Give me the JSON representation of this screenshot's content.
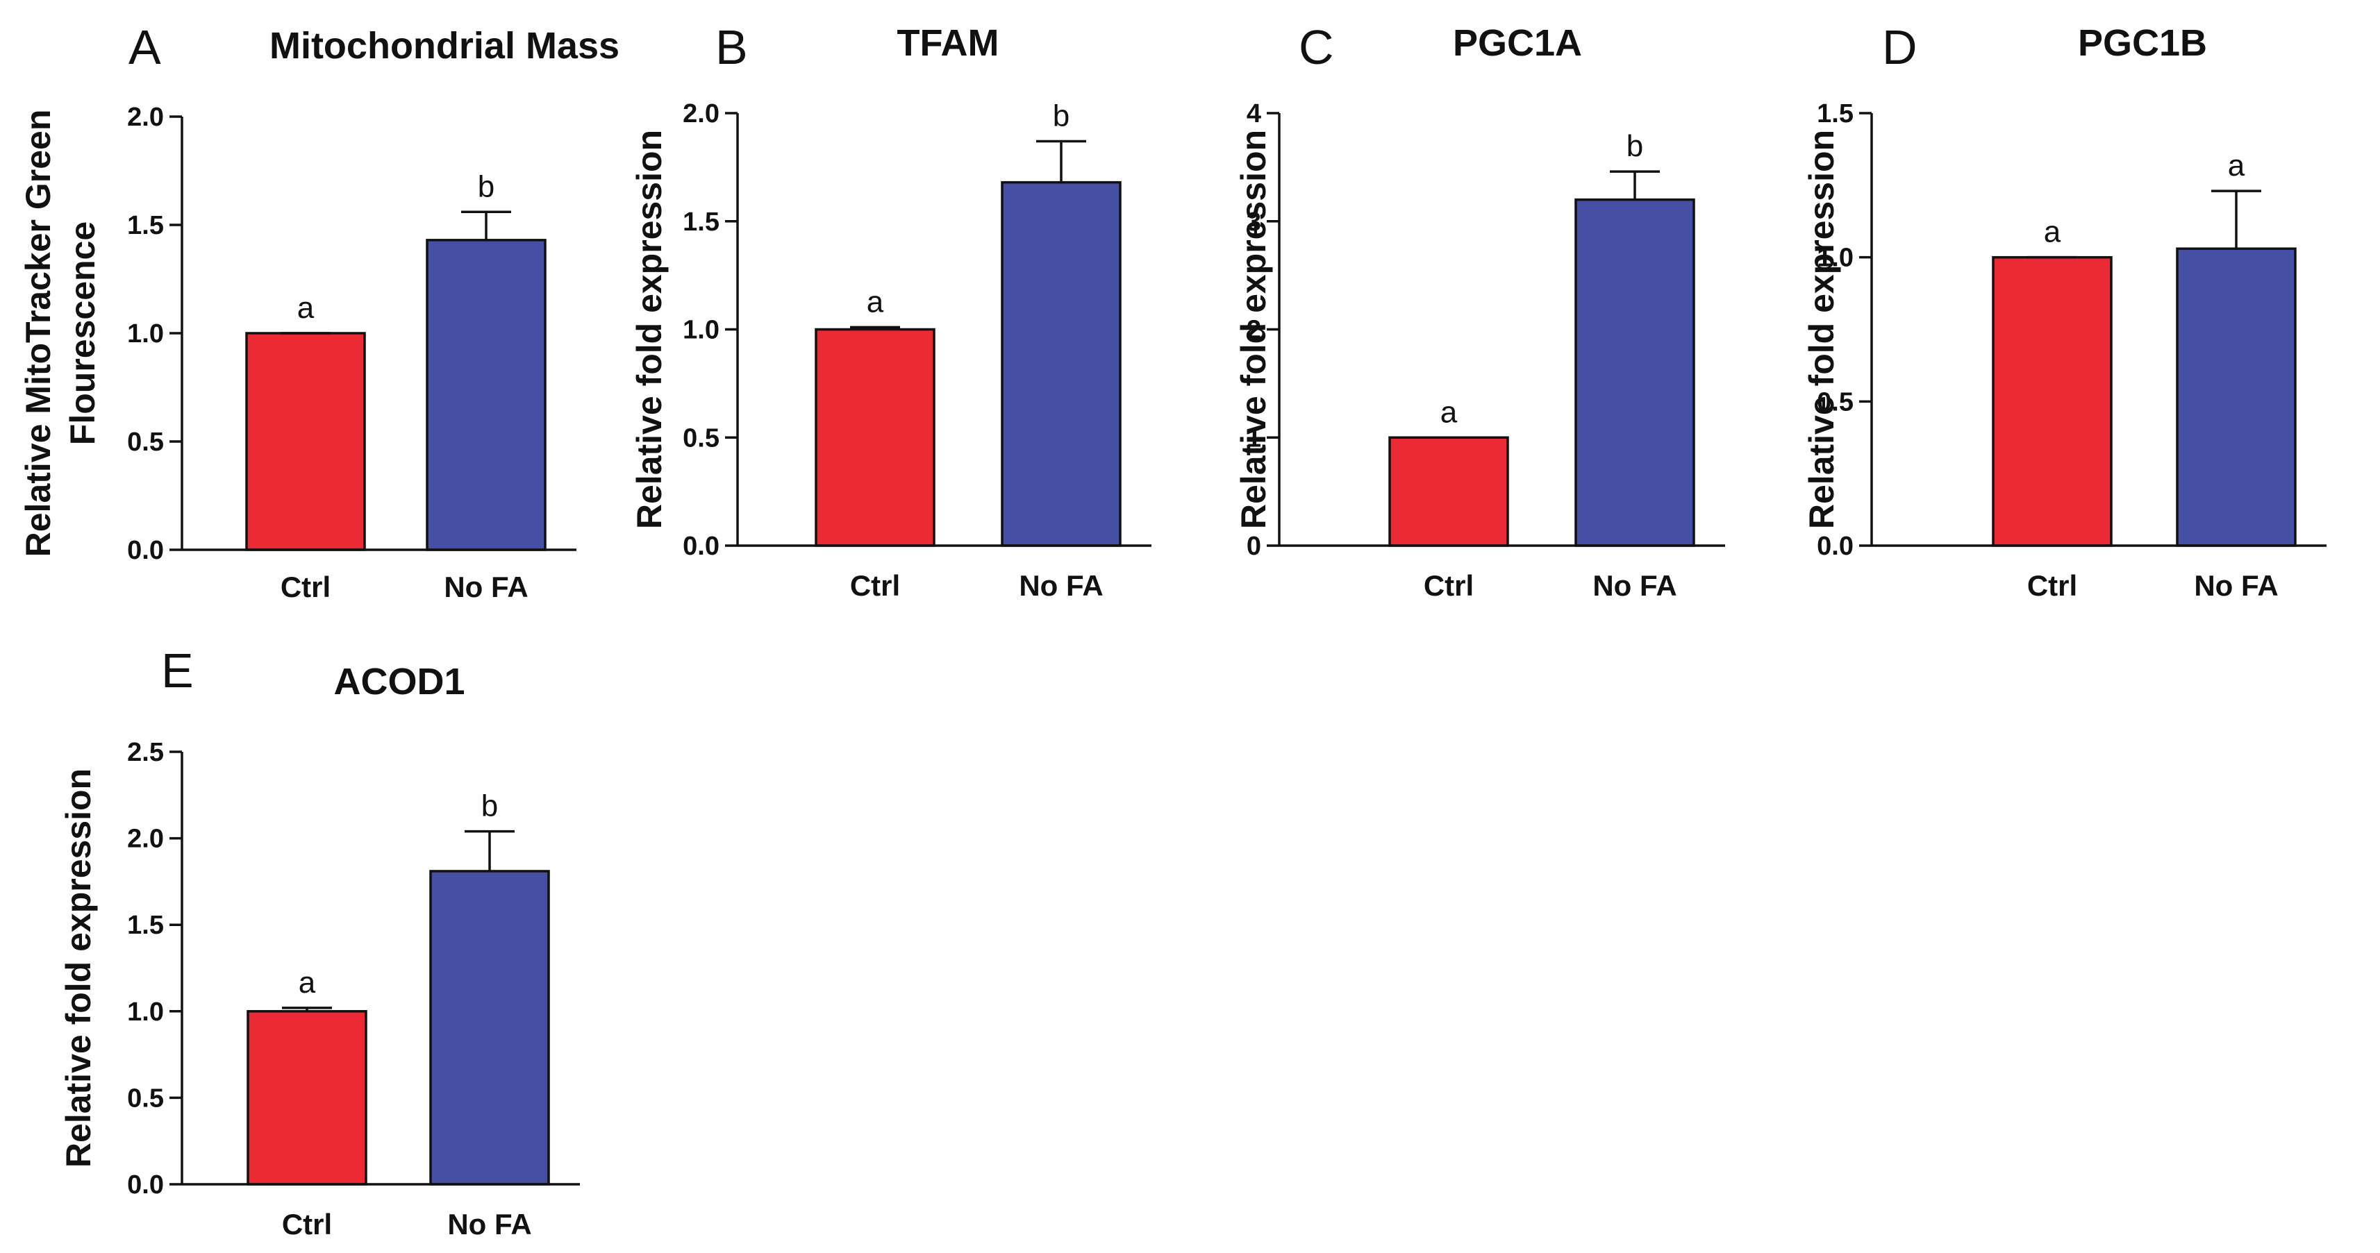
{
  "figure_letters": [
    "A",
    "B",
    "C",
    "D",
    "E"
  ],
  "colors": {
    "ctrl": "#EC2A35",
    "nofa": "#454FA4",
    "axis": "#111111"
  },
  "chart_data": [
    {
      "panel": "A",
      "type": "bar",
      "title": "Mitochondrial Mass",
      "ylabel_lines": [
        "Relative MitoTracker Green",
        "Flourescence"
      ],
      "categories": [
        "Ctrl",
        "No FA"
      ],
      "values": [
        1.0,
        1.43
      ],
      "errors": [
        0.0,
        0.13
      ],
      "significance": [
        "a",
        "b"
      ],
      "ylim": [
        0,
        2.0
      ],
      "yticks": [
        0,
        0.5,
        1.0,
        1.5,
        2.0
      ],
      "ytick_labels": [
        "0.0",
        "0.5",
        "1.0",
        "1.5",
        "2.0"
      ]
    },
    {
      "panel": "B",
      "type": "bar",
      "title": "TFAM",
      "ylabel_lines": [
        "Relative fold expression"
      ],
      "categories": [
        "Ctrl",
        "No FA"
      ],
      "values": [
        1.0,
        1.68
      ],
      "errors": [
        0.01,
        0.19
      ],
      "significance": [
        "a",
        "b"
      ],
      "ylim": [
        0,
        2.0
      ],
      "yticks": [
        0,
        0.5,
        1.0,
        1.5,
        2.0
      ],
      "ytick_labels": [
        "0.0",
        "0.5",
        "1.0",
        "1.5",
        "2.0"
      ]
    },
    {
      "panel": "C",
      "type": "bar",
      "title": "PGC1A",
      "ylabel_lines": [
        "Relative fold expression"
      ],
      "categories": [
        "Ctrl",
        "No FA"
      ],
      "values": [
        1.0,
        3.2
      ],
      "errors": [
        0.0,
        0.26
      ],
      "significance": [
        "a",
        "b"
      ],
      "ylim": [
        0,
        4
      ],
      "yticks": [
        0,
        1,
        2,
        3,
        4
      ],
      "ytick_labels": [
        "0",
        "1",
        "2",
        "3",
        "4"
      ]
    },
    {
      "panel": "D",
      "type": "bar",
      "title": "PGC1B",
      "ylabel_lines": [
        "Relative fold expression"
      ],
      "categories": [
        "Ctrl",
        "No FA"
      ],
      "values": [
        1.0,
        1.03
      ],
      "errors": [
        0.0,
        0.2
      ],
      "significance": [
        "a",
        "a"
      ],
      "ylim": [
        0,
        1.5
      ],
      "yticks": [
        0,
        0.5,
        1.0,
        1.5
      ],
      "ytick_labels": [
        "0.0",
        "0.5",
        "1.0",
        "1.5"
      ]
    },
    {
      "panel": "E",
      "type": "bar",
      "title": "ACOD1",
      "ylabel_lines": [
        "Relative fold expression"
      ],
      "categories": [
        "Ctrl",
        "No FA"
      ],
      "values": [
        1.0,
        1.81
      ],
      "errors": [
        0.02,
        0.23
      ],
      "significance": [
        "a",
        "b"
      ],
      "ylim": [
        0,
        2.5
      ],
      "yticks": [
        0,
        0.5,
        1.0,
        1.5,
        2.0,
        2.5
      ],
      "ytick_labels": [
        "0.0",
        "0.5",
        "1.0",
        "1.5",
        "2.0",
        "2.5"
      ]
    }
  ]
}
